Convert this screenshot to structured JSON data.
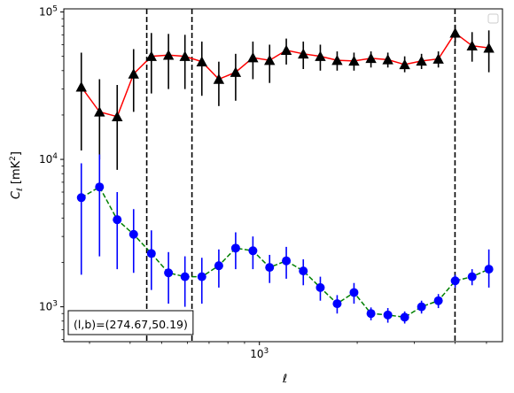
{
  "chart_data": {
    "type": "scatter",
    "xlabel": "ℓ",
    "ylabel": "C_ℓ [mK²]",
    "xscale": "log",
    "yscale": "log",
    "xlim": [
      250,
      5600
    ],
    "ylim": [
      580,
      105000
    ],
    "x_major_ticks": [
      {
        "value": 1000,
        "base": "10",
        "exp": "3"
      }
    ],
    "y_major_ticks": [
      {
        "value": 1000,
        "base": "10",
        "exp": "3"
      },
      {
        "value": 10000,
        "base": "10",
        "exp": "4"
      },
      {
        "value": 100000,
        "base": "10",
        "exp": "5"
      }
    ],
    "vlines": [
      450,
      620,
      4000
    ],
    "legend": {
      "placement": "top-right",
      "entries": []
    },
    "annotation": "(l,b)=(274.67,50.19)",
    "series": [
      {
        "color": "#ff0000",
        "marker": "triangle",
        "marker_color": "#000000",
        "errbar_color": "#000000",
        "line_style": "solid",
        "points": [
          {
            "x": 283,
            "y": 31000,
            "lo": 11500,
            "hi": 53000
          },
          {
            "x": 322,
            "y": 21000,
            "lo": 10000,
            "hi": 35000
          },
          {
            "x": 365,
            "y": 19500,
            "lo": 8500,
            "hi": 32000
          },
          {
            "x": 410,
            "y": 38000,
            "lo": 21000,
            "hi": 56000
          },
          {
            "x": 465,
            "y": 50000,
            "lo": 28000,
            "hi": 72000
          },
          {
            "x": 525,
            "y": 51000,
            "lo": 30000,
            "hi": 71000
          },
          {
            "x": 590,
            "y": 50000,
            "lo": 30000,
            "hi": 70000
          },
          {
            "x": 665,
            "y": 46000,
            "lo": 27000,
            "hi": 63000
          },
          {
            "x": 750,
            "y": 35000,
            "lo": 23000,
            "hi": 46000
          },
          {
            "x": 845,
            "y": 39000,
            "lo": 25000,
            "hi": 52000
          },
          {
            "x": 955,
            "y": 49000,
            "lo": 35000,
            "hi": 63000
          },
          {
            "x": 1075,
            "y": 47000,
            "lo": 33000,
            "hi": 60000
          },
          {
            "x": 1210,
            "y": 55000,
            "lo": 44000,
            "hi": 66000
          },
          {
            "x": 1365,
            "y": 52000,
            "lo": 41000,
            "hi": 63000
          },
          {
            "x": 1540,
            "y": 50000,
            "lo": 40000,
            "hi": 60000
          },
          {
            "x": 1735,
            "y": 47000,
            "lo": 40000,
            "hi": 54000
          },
          {
            "x": 1955,
            "y": 46500,
            "lo": 40000,
            "hi": 53000
          },
          {
            "x": 2205,
            "y": 48500,
            "lo": 42000,
            "hi": 54000
          },
          {
            "x": 2485,
            "y": 47500,
            "lo": 42000,
            "hi": 53000
          },
          {
            "x": 2800,
            "y": 44000,
            "lo": 39000,
            "hi": 50000
          },
          {
            "x": 3155,
            "y": 46500,
            "lo": 41000,
            "hi": 52000
          },
          {
            "x": 3555,
            "y": 48000,
            "lo": 42000,
            "hi": 54000
          },
          {
            "x": 4005,
            "y": 72000,
            "lo": 62000,
            "hi": 82000
          },
          {
            "x": 4515,
            "y": 59000,
            "lo": 46000,
            "hi": 73000
          },
          {
            "x": 5085,
            "y": 57000,
            "lo": 39000,
            "hi": 75000
          }
        ]
      },
      {
        "color": "#008000",
        "marker": "circle",
        "marker_color": "#0000ff",
        "errbar_color": "#0000ff",
        "line_style": "dashed",
        "points": [
          {
            "x": 283,
            "y": 5500,
            "lo": 1650,
            "hi": 9400
          },
          {
            "x": 322,
            "y": 6500,
            "lo": 2200,
            "hi": 10800
          },
          {
            "x": 365,
            "y": 3900,
            "lo": 1800,
            "hi": 6000
          },
          {
            "x": 410,
            "y": 3100,
            "lo": 1700,
            "hi": 4600
          },
          {
            "x": 465,
            "y": 2300,
            "lo": 1300,
            "hi": 3300
          },
          {
            "x": 525,
            "y": 1700,
            "lo": 1050,
            "hi": 2350
          },
          {
            "x": 590,
            "y": 1600,
            "lo": 1000,
            "hi": 2200
          },
          {
            "x": 665,
            "y": 1600,
            "lo": 1050,
            "hi": 2150
          },
          {
            "x": 750,
            "y": 1900,
            "lo": 1350,
            "hi": 2450
          },
          {
            "x": 845,
            "y": 2500,
            "lo": 1800,
            "hi": 3200
          },
          {
            "x": 955,
            "y": 2400,
            "lo": 1800,
            "hi": 3000
          },
          {
            "x": 1075,
            "y": 1850,
            "lo": 1450,
            "hi": 2250
          },
          {
            "x": 1210,
            "y": 2050,
            "lo": 1550,
            "hi": 2550
          },
          {
            "x": 1365,
            "y": 1750,
            "lo": 1400,
            "hi": 2100
          },
          {
            "x": 1540,
            "y": 1350,
            "lo": 1100,
            "hi": 1600
          },
          {
            "x": 1735,
            "y": 1050,
            "lo": 900,
            "hi": 1200
          },
          {
            "x": 1955,
            "y": 1250,
            "lo": 1050,
            "hi": 1450
          },
          {
            "x": 2205,
            "y": 900,
            "lo": 810,
            "hi": 990
          },
          {
            "x": 2485,
            "y": 880,
            "lo": 780,
            "hi": 980
          },
          {
            "x": 2800,
            "y": 850,
            "lo": 770,
            "hi": 930
          },
          {
            "x": 3155,
            "y": 1000,
            "lo": 900,
            "hi": 1100
          },
          {
            "x": 3555,
            "y": 1100,
            "lo": 980,
            "hi": 1220
          },
          {
            "x": 4005,
            "y": 1500,
            "lo": 1350,
            "hi": 1650
          },
          {
            "x": 4515,
            "y": 1600,
            "lo": 1400,
            "hi": 1800
          },
          {
            "x": 5085,
            "y": 1800,
            "lo": 1350,
            "hi": 2450
          }
        ]
      }
    ]
  }
}
